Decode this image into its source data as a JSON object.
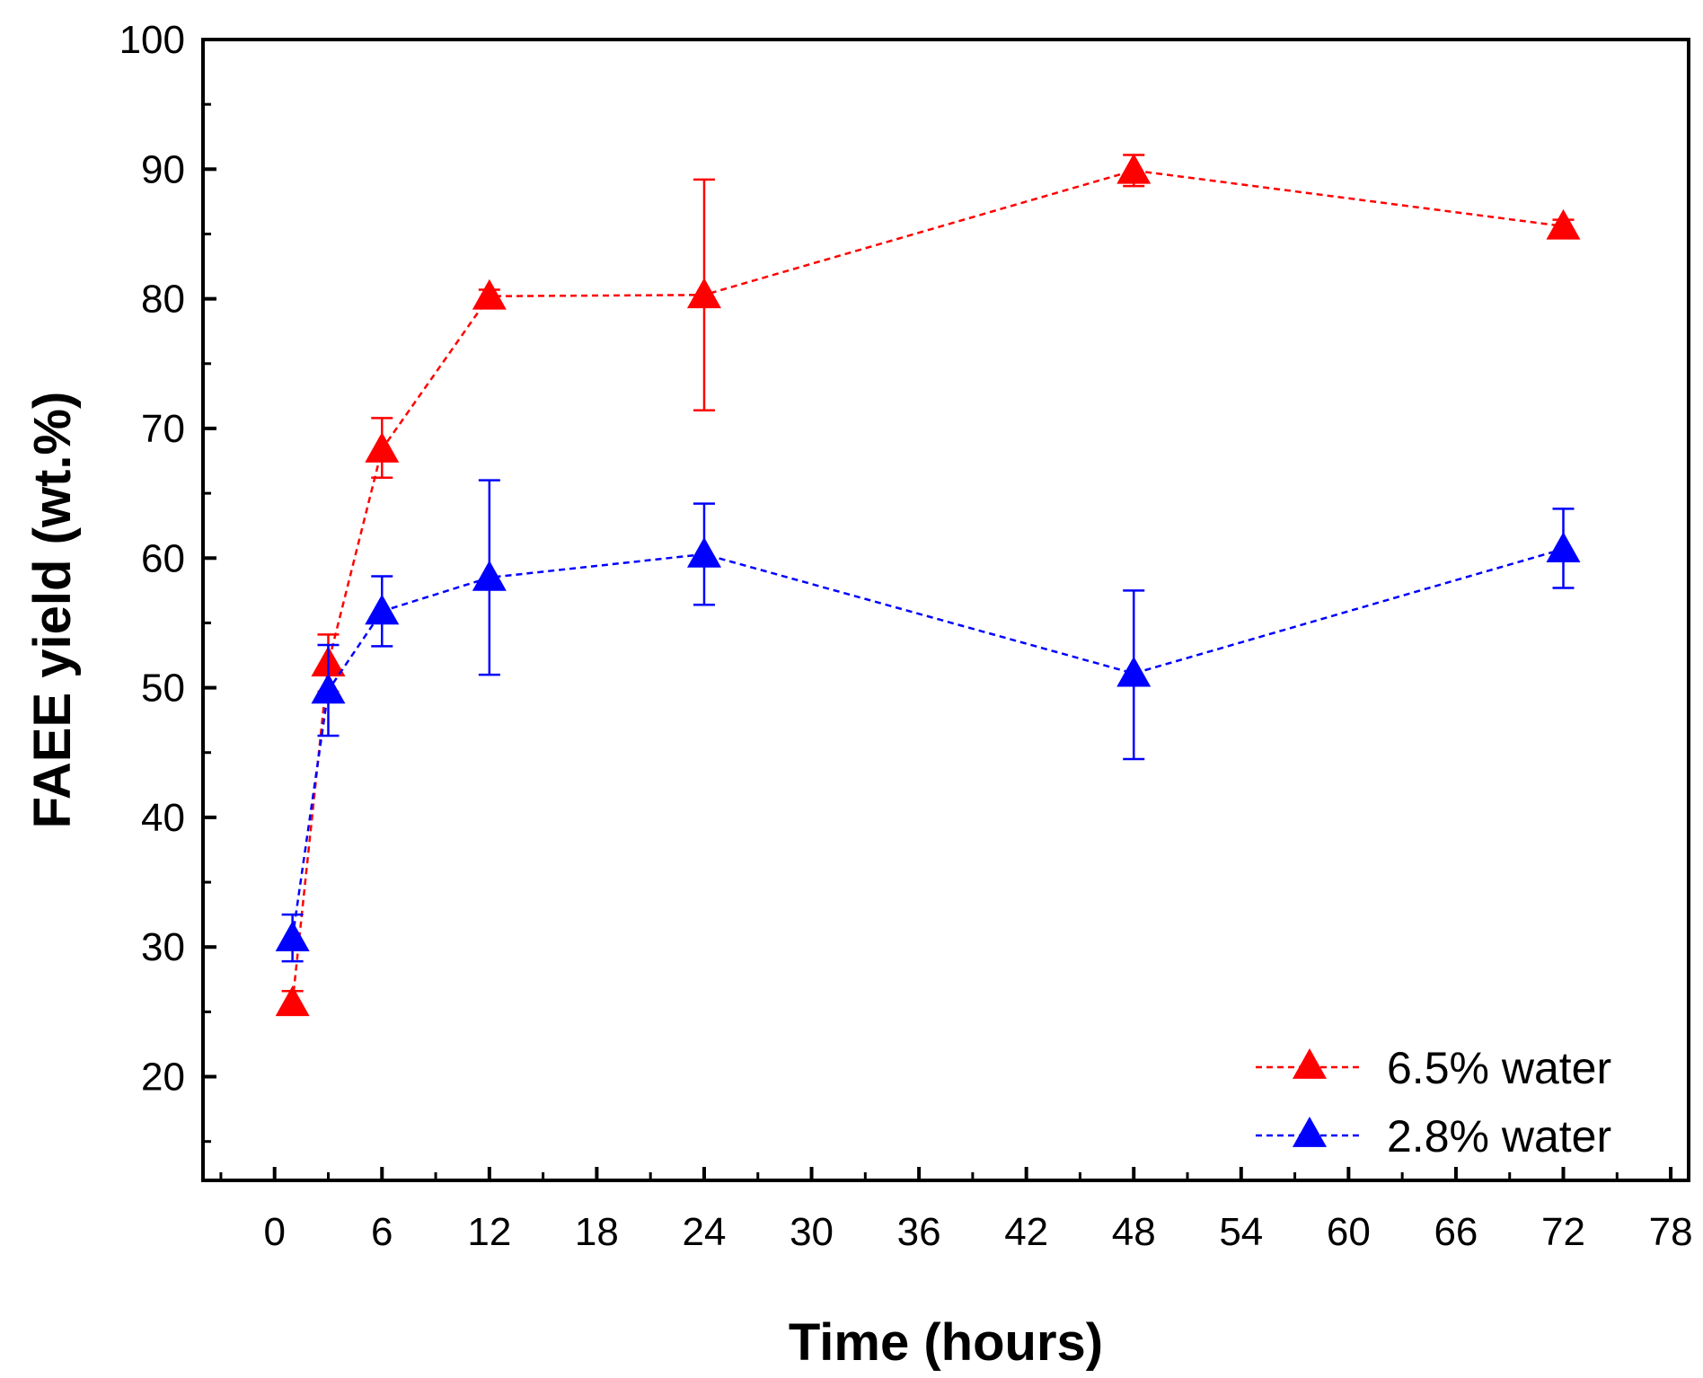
{
  "chart_data": {
    "type": "line",
    "xlabel": "Time (hours)",
    "ylabel": "FAEE yield (wt.%)",
    "xlim": [
      -4,
      79
    ],
    "ylim": [
      12,
      100
    ],
    "xticks": [
      0,
      6,
      12,
      18,
      24,
      30,
      36,
      42,
      48,
      54,
      60,
      66,
      72,
      78
    ],
    "xtick_labels": [
      "0",
      "6",
      "12",
      "18",
      "24",
      "30",
      "36",
      "42",
      "48",
      "54",
      "60",
      "66",
      "72",
      "78"
    ],
    "yticks": [
      20,
      30,
      40,
      50,
      60,
      70,
      80,
      90,
      100
    ],
    "ytick_labels": [
      "20",
      "30",
      "40",
      "50",
      "60",
      "70",
      "80",
      "90",
      "100"
    ],
    "legend_position": "bottom-right",
    "series": [
      {
        "name": "6.5% water",
        "label": "6.5% water",
        "color": "#ff0000",
        "marker": "triangle",
        "line_style": "dashed",
        "x": [
          1,
          3,
          6,
          12,
          24,
          48,
          72
        ],
        "y": [
          25.7,
          51.9,
          68.4,
          80.2,
          80.3,
          89.9,
          85.6
        ],
        "err_low": [
          0.9,
          2.2,
          2.2,
          0.5,
          8.9,
          1.2,
          0.5
        ],
        "err_high": [
          0.9,
          2.2,
          2.4,
          0.5,
          8.9,
          1.2,
          0.5
        ]
      },
      {
        "name": "2.8% water",
        "label": "2.8% water",
        "color": "#0000ff",
        "marker": "triangle",
        "line_style": "dashed",
        "x": [
          1,
          3,
          6,
          12,
          24,
          48,
          72
        ],
        "y": [
          30.7,
          49.8,
          55.9,
          58.5,
          60.3,
          51.1,
          60.7
        ],
        "err_low": [
          1.8,
          3.5,
          2.7,
          7.5,
          3.9,
          6.6,
          3.0
        ],
        "err_high": [
          1.8,
          3.5,
          2.7,
          7.5,
          3.9,
          6.4,
          3.1
        ]
      }
    ]
  }
}
